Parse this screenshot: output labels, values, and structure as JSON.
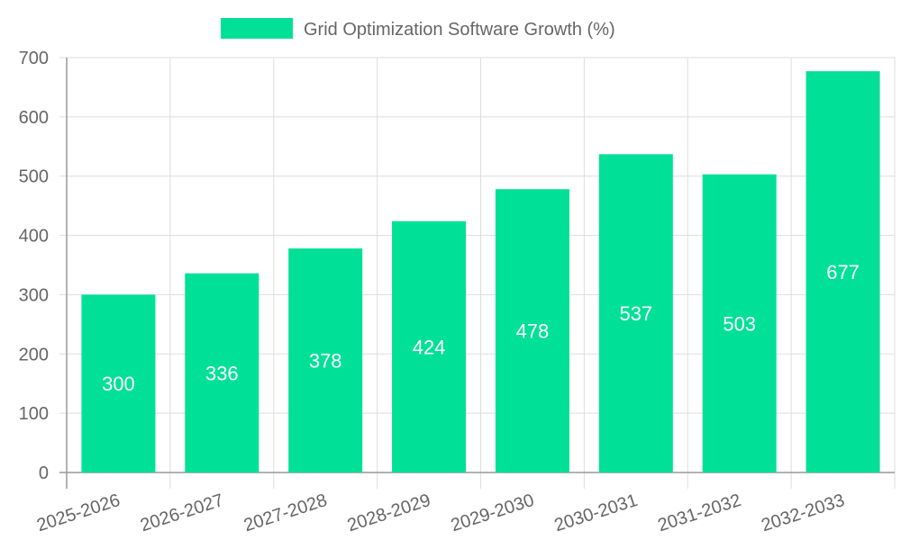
{
  "chart_data": {
    "type": "bar",
    "categories": [
      "2025-2026",
      "2026-2027",
      "2027-2028",
      "2028-2029",
      "2029-2030",
      "2030-2031",
      "2031-2032",
      "2032-2033"
    ],
    "series": [
      {
        "name": "Grid Optimization Software Growth (%)",
        "values": [
          300,
          336,
          378,
          424,
          478,
          537,
          503,
          677
        ]
      }
    ],
    "ylim": [
      0,
      700
    ],
    "yticks": [
      0,
      100,
      200,
      300,
      400,
      500,
      600,
      700
    ],
    "grid": true,
    "legend": "top-center",
    "data_labels": true,
    "colors": {
      "bar": "#00e096",
      "label": "#ffffff"
    }
  }
}
